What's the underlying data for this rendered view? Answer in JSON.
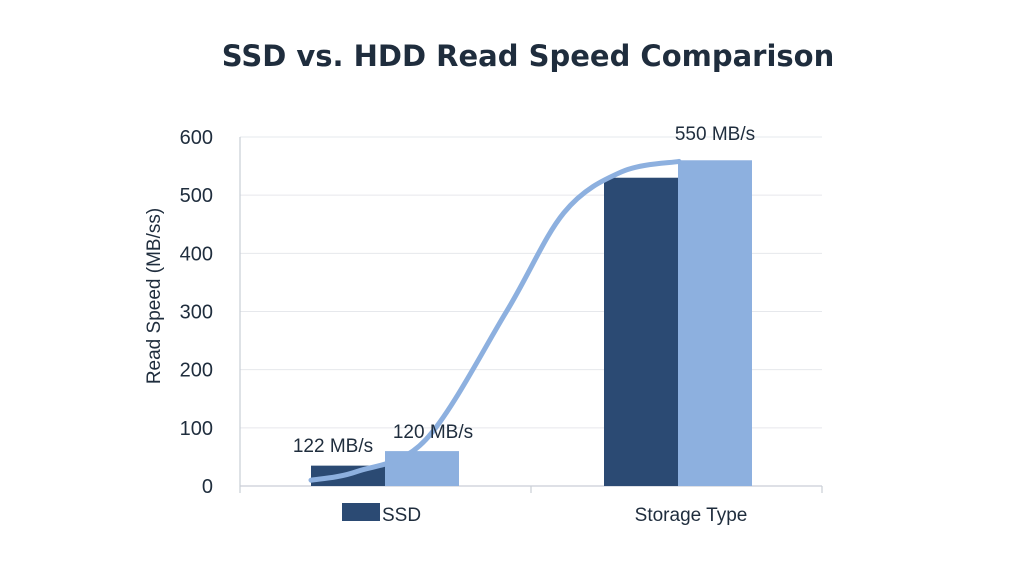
{
  "chart_data": {
    "type": "bar",
    "title": "SSD vs. HDD Read Speed Comparison",
    "xlabel": "Storage Type",
    "ylabel": "Read Speed (MB/ss)",
    "ylim": [
      0,
      600
    ],
    "yticks": [
      0,
      100,
      200,
      300,
      400,
      500,
      600
    ],
    "grid": true,
    "series": [
      {
        "color": "#2b4a73",
        "values": [
          35,
          530
        ]
      },
      {
        "color": "#8db0df",
        "values": [
          60,
          560
        ]
      }
    ],
    "data_labels": [
      {
        "text": "122 MB/s",
        "x": 0,
        "y": 122
      },
      {
        "text": "120 MB/s",
        "x": 1,
        "y": 120
      },
      {
        "text": "550 MB/s",
        "x": 3,
        "y": 550
      }
    ],
    "trend_line": {
      "color": "#8db0df",
      "x": [
        0,
        0.4,
        1,
        1.7,
        2.2,
        2.7,
        3.2
      ],
      "y": [
        10,
        25,
        80,
        300,
        470,
        540,
        558
      ]
    },
    "legend": {
      "name": "SSD",
      "color": "#2b4a73",
      "position": "bottom-left"
    }
  }
}
